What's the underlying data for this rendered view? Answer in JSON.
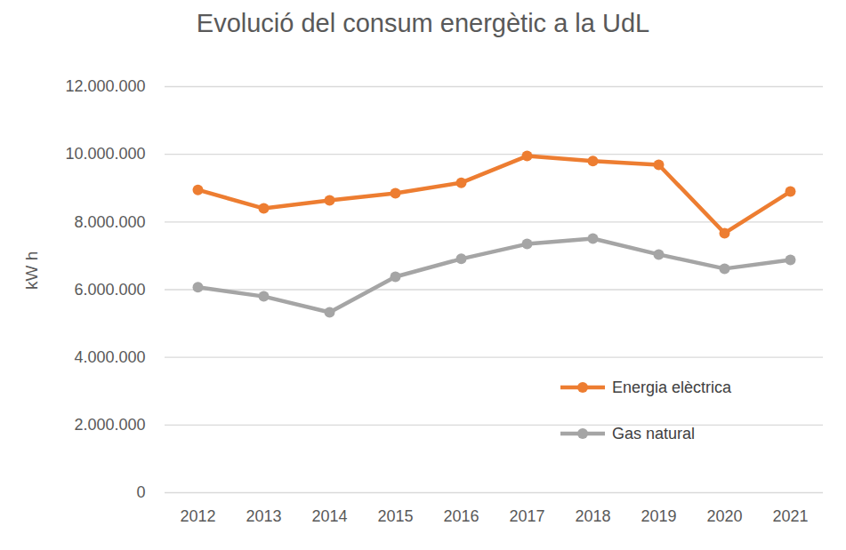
{
  "chart_data": {
    "type": "line",
    "title": "Evolució del consum energètic a la UdL",
    "y_label": "kW h",
    "categories": [
      "2012",
      "2013",
      "2014",
      "2015",
      "2016",
      "2017",
      "2018",
      "2019",
      "2020",
      "2021"
    ],
    "series": [
      {
        "name": "Energia elèctrica",
        "color": "#ed7d31",
        "marker": "circle",
        "values": [
          8950000,
          8400000,
          8640000,
          8850000,
          9160000,
          9950000,
          9800000,
          9690000,
          7670000,
          8900000
        ]
      },
      {
        "name": "Gas natural",
        "color": "#a5a5a5",
        "marker": "circle",
        "values": [
          6070000,
          5800000,
          5330000,
          6380000,
          6910000,
          7350000,
          7510000,
          7040000,
          6620000,
          6880000
        ]
      }
    ],
    "ylim": [
      0,
      12000000
    ],
    "yticks": [
      0,
      {
        "value": 2000000,
        "label": "2.000.000"
      },
      {
        "value": 4000000,
        "label": "4.000.000"
      },
      {
        "value": 6000000,
        "label": "6.000.000"
      },
      {
        "value": 8000000,
        "label": "8.000.000"
      },
      {
        "value": 10000000,
        "label": "10.000.000"
      },
      {
        "value": 12000000,
        "label": "12.000.000"
      }
    ],
    "grid": true,
    "legend": "lower right"
  }
}
